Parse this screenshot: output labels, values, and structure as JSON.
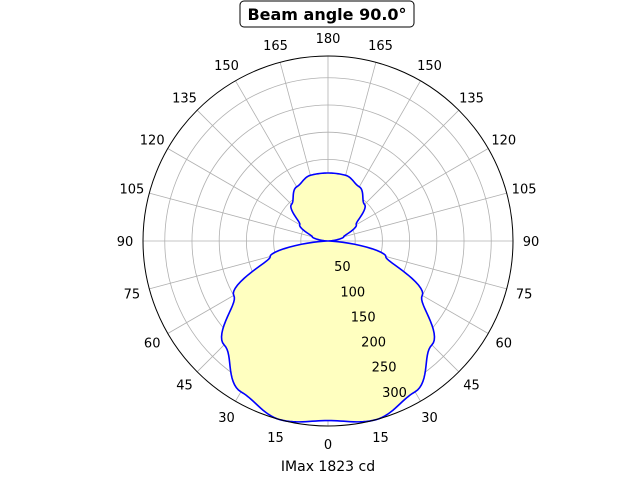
{
  "chart_data": {
    "type": "polar",
    "title": "Beam angle 90.0°",
    "xlabel": "IMax 1823 cd",
    "angle_tick_labels": [
      "0",
      "15",
      "30",
      "45",
      "60",
      "75",
      "90",
      "105",
      "120",
      "135",
      "150",
      "165",
      "180",
      "165",
      "150",
      "135",
      "120",
      "105",
      "90",
      "75",
      "60",
      "45",
      "30",
      "15"
    ],
    "radial_tick_labels": [
      "50",
      "100",
      "150",
      "200",
      "250",
      "300"
    ],
    "radial_ticks": [
      50,
      100,
      150,
      200,
      250,
      300
    ],
    "rlim": [
      0,
      340
    ],
    "grid": true,
    "series": [
      {
        "angle_deg": [
          0,
          15,
          30,
          45,
          60,
          75,
          90,
          105,
          120,
          135,
          150,
          165,
          180
        ],
        "intensity": [
          330,
          340,
          320,
          270,
          200,
          110,
          0,
          30,
          60,
          95,
          115,
          125,
          125
        ]
      }
    ],
    "colors": {
      "line": "#0000ff",
      "fill": "#ffffc0",
      "grid": "#b0b0b0",
      "frame": "#000000"
    }
  }
}
